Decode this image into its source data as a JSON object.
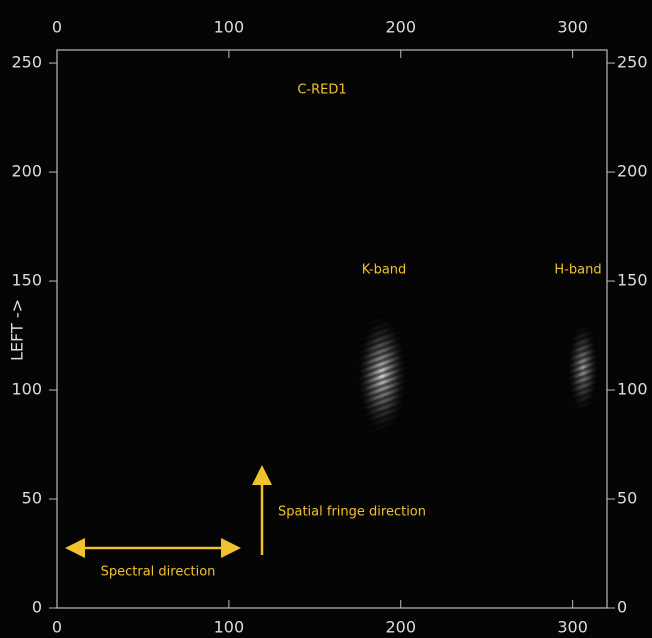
{
  "chart_data": {
    "type": "image",
    "y_label": "LEFT ->",
    "xlim": [
      0,
      320
    ],
    "ylim": [
      0,
      256
    ],
    "xticks": [
      0,
      100,
      200,
      300
    ],
    "yticks": [
      0,
      50,
      100,
      150,
      200,
      250
    ],
    "annotations": [
      "C-RED1",
      "K-band",
      "H-band",
      "Spatial fringe direction",
      "Spectral direction"
    ],
    "annotation_color": "#f2c12e"
  }
}
